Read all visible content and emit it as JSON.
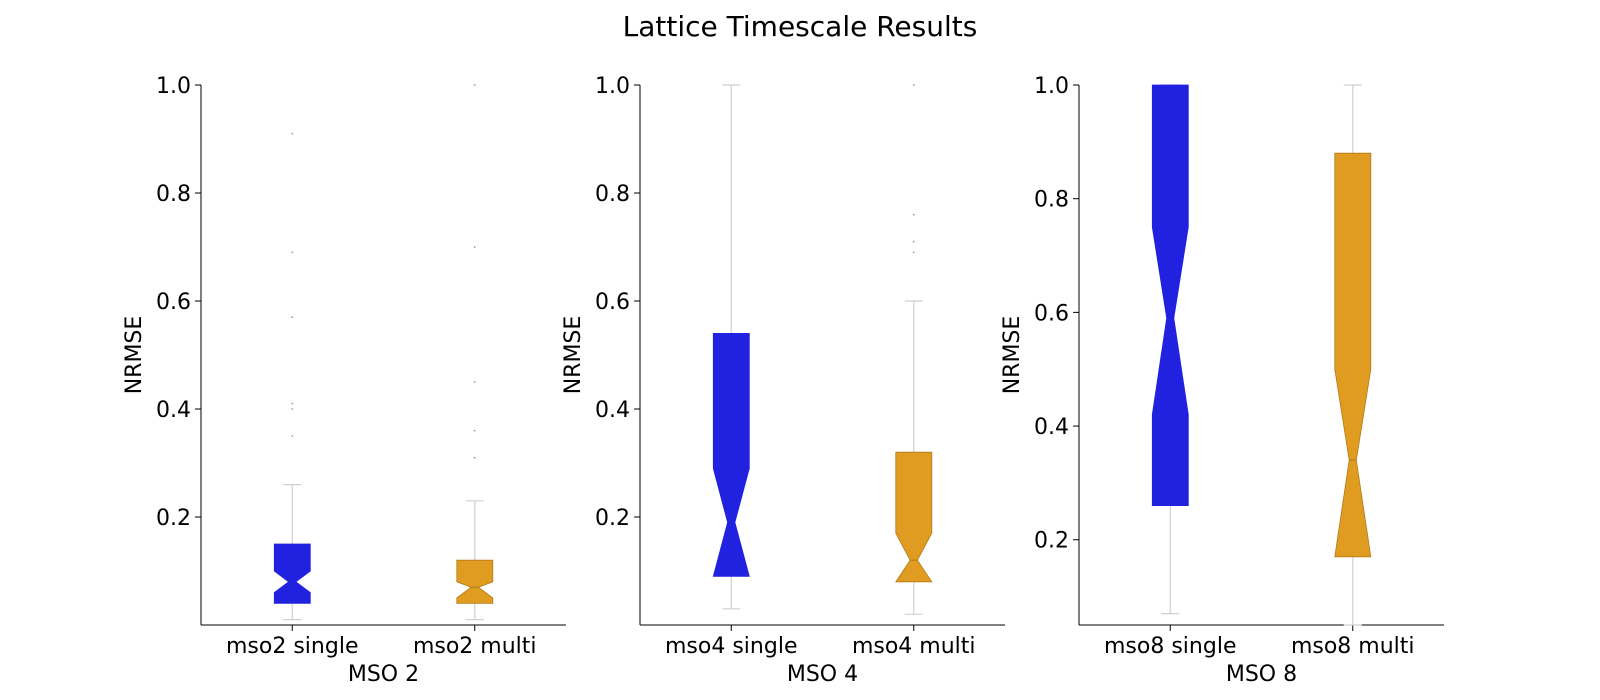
{
  "title": "Lattice Timescale Results",
  "chart_data": [
    {
      "type": "boxplot",
      "xlabel": "MSO 2",
      "ylabel": "NRMSE",
      "ylim": [
        0.0,
        1.0
      ],
      "yticks": [
        "0.2",
        "0.4",
        "0.6",
        "0.8",
        "1.0"
      ],
      "categories": [
        "mso2 single",
        "mso2 multi"
      ],
      "boxes": [
        {
          "label": "mso2 single",
          "color": "#2121e0",
          "whislo": 0.01,
          "q1": 0.04,
          "med": 0.08,
          "q3": 0.15,
          "whishi": 0.26,
          "notch_lo": 0.06,
          "notch_hi": 0.1,
          "fliers": [
            0.35,
            0.4,
            0.41,
            0.57,
            0.69,
            0.91
          ]
        },
        {
          "label": "mso2 multi",
          "color": "#e09c21",
          "whislo": 0.01,
          "q1": 0.04,
          "med": 0.07,
          "q3": 0.12,
          "whishi": 0.23,
          "notch_lo": 0.05,
          "notch_hi": 0.08,
          "fliers": [
            0.31,
            0.36,
            0.45,
            0.7,
            1.0
          ]
        }
      ]
    },
    {
      "type": "boxplot",
      "xlabel": "MSO 4",
      "ylabel": "NRMSE",
      "ylim": [
        0.0,
        1.0
      ],
      "yticks": [
        "0.2",
        "0.4",
        "0.6",
        "0.8",
        "1.0"
      ],
      "categories": [
        "mso4 single",
        "mso4 multi"
      ],
      "boxes": [
        {
          "label": "mso4 single",
          "color": "#2121e0",
          "whislo": 0.03,
          "q1": 0.09,
          "med": 0.19,
          "q3": 0.54,
          "whishi": 1.0,
          "notch_lo": 0.09,
          "notch_hi": 0.29,
          "fliers": []
        },
        {
          "label": "mso4 multi",
          "color": "#e09c21",
          "whislo": 0.02,
          "q1": 0.08,
          "med": 0.12,
          "q3": 0.32,
          "whishi": 0.6,
          "notch_lo": 0.08,
          "notch_hi": 0.17,
          "fliers": [
            0.69,
            0.71,
            0.76,
            1.0
          ]
        }
      ]
    },
    {
      "type": "boxplot",
      "xlabel": "MSO 8",
      "ylabel": "NRMSE",
      "ylim": [
        0.05,
        1.0
      ],
      "yticks": [
        "0.2",
        "0.4",
        "0.6",
        "0.8",
        "1.0"
      ],
      "categories": [
        "mso8 single",
        "mso8 multi"
      ],
      "boxes": [
        {
          "label": "mso8 single",
          "color": "#2121e0",
          "whislo": 0.07,
          "q1": 0.26,
          "med": 0.59,
          "q3": 1.0,
          "whishi": 1.0,
          "notch_lo": 0.42,
          "notch_hi": 0.75,
          "fliers": []
        },
        {
          "label": "mso8 multi",
          "color": "#e09c21",
          "whislo": 0.05,
          "q1": 0.17,
          "med": 0.34,
          "q3": 0.88,
          "whishi": 1.0,
          "notch_lo": 0.17,
          "notch_hi": 0.5,
          "fliers": []
        }
      ]
    }
  ]
}
